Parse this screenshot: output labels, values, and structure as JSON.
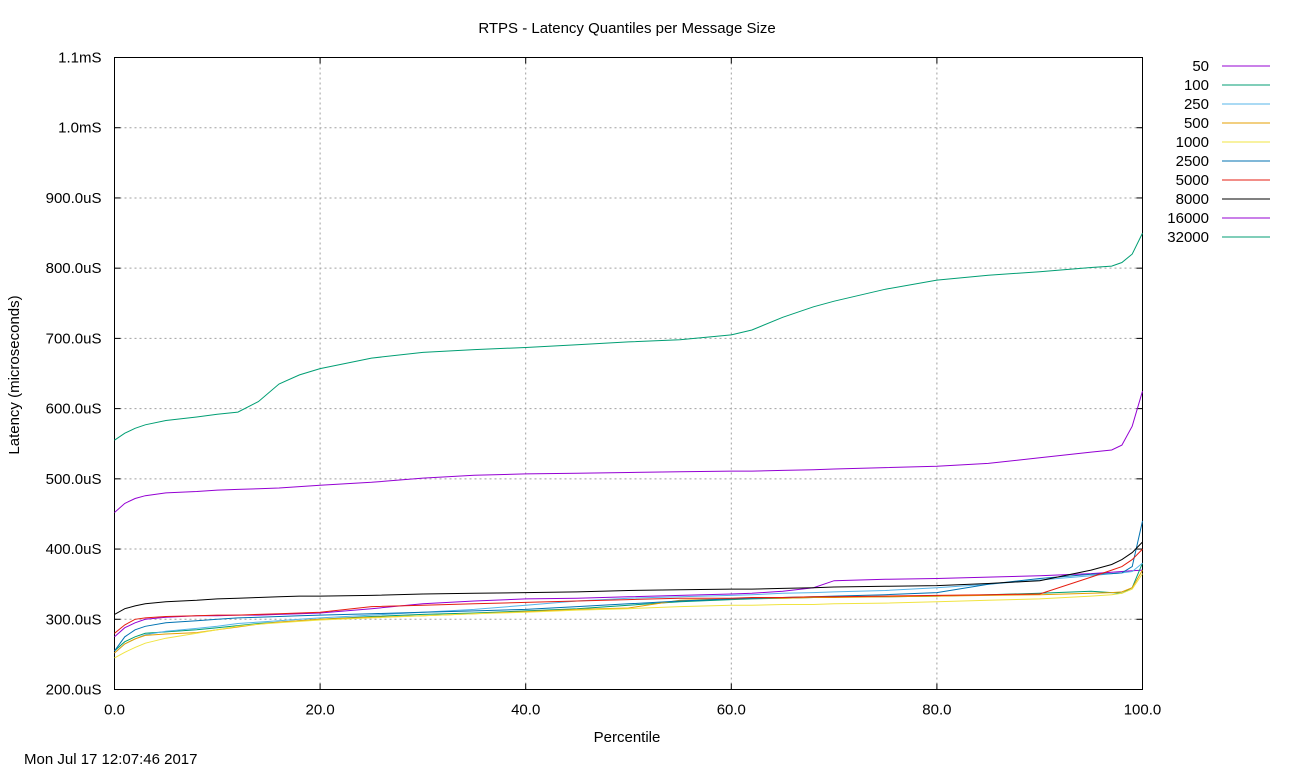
{
  "chart_data": {
    "type": "line",
    "title": "RTPS - Latency Quantiles per Message Size",
    "xlabel": "Percentile",
    "ylabel": "Latency (microseconds)",
    "xlim": [
      0,
      100
    ],
    "ylim": [
      200,
      1100
    ],
    "x_ticks": [
      0,
      20,
      40,
      60,
      80,
      100
    ],
    "x_tick_labels": [
      "0.0",
      "20.0",
      "40.0",
      "60.0",
      "80.0",
      "100.0"
    ],
    "y_ticks": [
      200,
      300,
      400,
      500,
      600,
      700,
      800,
      900,
      1000,
      1100
    ],
    "y_tick_labels": [
      "200.0uS",
      "300.0uS",
      "400.0uS",
      "500.0uS",
      "600.0uS",
      "700.0uS",
      "800.0uS",
      "900.0uS",
      "1.0mS",
      "1.1mS"
    ],
    "grid": true,
    "legend_position": "right",
    "x": [
      0,
      1,
      2,
      3,
      5,
      8,
      10,
      12,
      14,
      16,
      18,
      20,
      25,
      30,
      35,
      40,
      45,
      50,
      55,
      60,
      62,
      65,
      68,
      70,
      75,
      80,
      85,
      90,
      95,
      97,
      98,
      99,
      100
    ],
    "series": [
      {
        "name": "50",
        "color": "#9400d3",
        "values": [
          275,
          288,
          295,
          300,
          303,
          305,
          305,
          306,
          306,
          307,
          308,
          309,
          315,
          322,
          326,
          329,
          330,
          332,
          334,
          336,
          337,
          340,
          345,
          355,
          357,
          358,
          360,
          362,
          365,
          367,
          368,
          369,
          370
        ]
      },
      {
        "name": "100",
        "color": "#009e73",
        "values": [
          255,
          268,
          275,
          280,
          282,
          285,
          288,
          291,
          294,
          296,
          298,
          300,
          304,
          307,
          309,
          312,
          315,
          320,
          325,
          328,
          329,
          330,
          331,
          332,
          332,
          333,
          335,
          337,
          340,
          338,
          337,
          345,
          380
        ]
      },
      {
        "name": "250",
        "color": "#56b4e9",
        "values": [
          252,
          265,
          272,
          278,
          283,
          287,
          290,
          294,
          296,
          298,
          300,
          302,
          306,
          310,
          314,
          320,
          326,
          330,
          332,
          334,
          335,
          337,
          338,
          339,
          341,
          345,
          350,
          356,
          362,
          365,
          366,
          368,
          380
        ]
      },
      {
        "name": "500",
        "color": "#e69f00",
        "values": [
          252,
          265,
          272,
          277,
          279,
          281,
          285,
          289,
          293,
          296,
          298,
          300,
          303,
          305,
          308,
          311,
          314,
          316,
          327,
          329,
          330,
          330,
          331,
          331,
          332,
          333,
          334,
          335,
          337,
          338,
          339,
          345,
          370
        ]
      },
      {
        "name": "1000",
        "color": "#f0e442",
        "values": [
          245,
          253,
          260,
          266,
          273,
          280,
          285,
          290,
          293,
          295,
          297,
          299,
          302,
          305,
          308,
          310,
          313,
          315,
          318,
          320,
          320,
          321,
          321,
          322,
          323,
          325,
          327,
          329,
          333,
          335,
          337,
          343,
          365
        ]
      },
      {
        "name": "2500",
        "color": "#0072b2",
        "values": [
          255,
          275,
          285,
          290,
          295,
          298,
          300,
          302,
          303,
          304,
          305,
          306,
          308,
          310,
          312,
          314,
          318,
          322,
          326,
          329,
          330,
          331,
          332,
          333,
          335,
          338,
          350,
          358,
          364,
          365,
          366,
          375,
          440
        ]
      },
      {
        "name": "5000",
        "color": "#e51e10",
        "values": [
          280,
          292,
          300,
          302,
          304,
          305,
          306,
          306,
          307,
          308,
          309,
          310,
          318,
          320,
          322,
          324,
          326,
          328,
          330,
          330,
          331,
          331,
          332,
          332,
          333,
          334,
          335,
          336,
          360,
          370,
          375,
          385,
          400
        ]
      },
      {
        "name": "8000",
        "color": "#000000",
        "values": [
          307,
          315,
          319,
          322,
          325,
          327,
          329,
          330,
          331,
          332,
          333,
          333,
          334,
          336,
          337,
          338,
          339,
          341,
          342,
          343,
          343,
          344,
          345,
          346,
          347,
          348,
          351,
          355,
          370,
          378,
          385,
          395,
          410
        ]
      },
      {
        "name": "16000",
        "color": "#9400d3",
        "values": [
          452,
          465,
          472,
          476,
          480,
          482,
          484,
          485,
          486,
          487,
          489,
          491,
          495,
          501,
          505,
          507,
          508,
          509,
          510,
          511,
          511,
          512,
          513,
          514,
          516,
          518,
          522,
          530,
          538,
          541,
          548,
          575,
          625
        ]
      },
      {
        "name": "32000",
        "color": "#009e73",
        "values": [
          555,
          565,
          572,
          577,
          583,
          588,
          592,
          595,
          610,
          635,
          648,
          657,
          672,
          680,
          684,
          687,
          691,
          695,
          698,
          705,
          712,
          730,
          745,
          753,
          770,
          783,
          790,
          795,
          801,
          803,
          808,
          820,
          850
        ]
      }
    ]
  },
  "footer": {
    "timestamp": "Mon Jul 17 12:07:46 2017"
  }
}
